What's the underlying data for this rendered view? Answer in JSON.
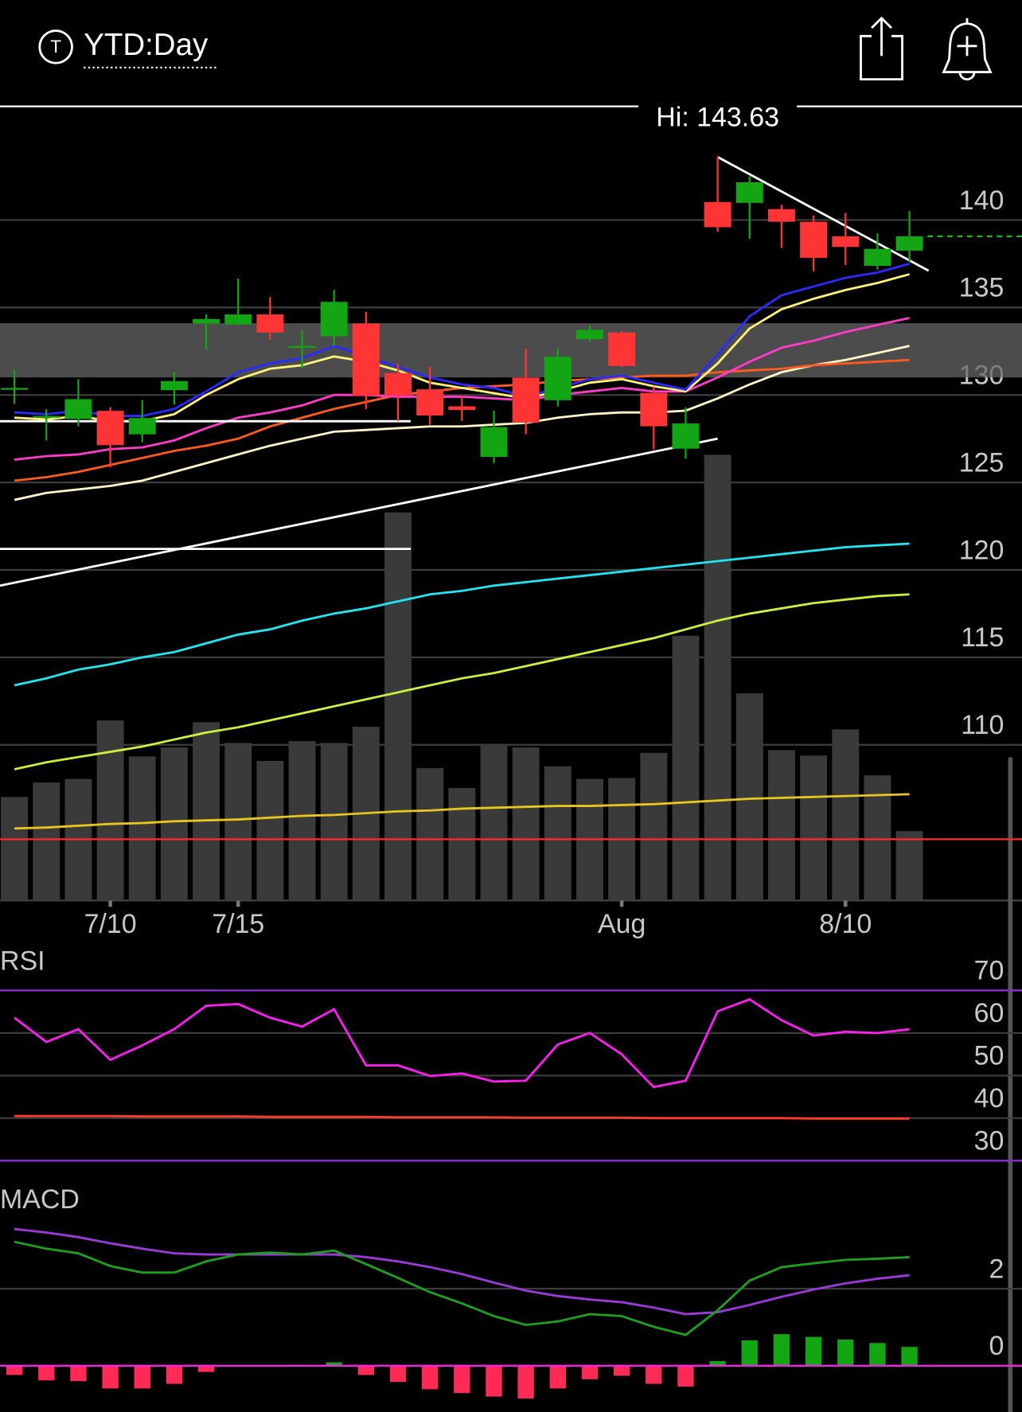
{
  "header": {
    "icon": "T",
    "title": "YTD:Day"
  },
  "chart_data": [
    {
      "type": "candlestick",
      "annotation": "Hi: 143.63",
      "categories": [
        null,
        null,
        null,
        "7/10",
        null,
        null,
        null,
        "7/15",
        null,
        null,
        null,
        null,
        null,
        null,
        null,
        null,
        null,
        null,
        null,
        "Aug",
        null,
        null,
        null,
        null,
        null,
        null,
        "8/10",
        null,
        null
      ],
      "open": [
        130.4,
        128.8,
        128.63,
        129.09,
        127.75,
        130.27,
        134.08,
        134.03,
        134.6,
        132.8,
        133.36,
        134.08,
        131.25,
        130.32,
        129.35,
        126.46,
        130.99,
        129.7,
        133.2,
        133.57,
        130.12,
        126.93,
        141.03,
        140.98,
        140.62,
        139.9,
        139.07,
        137.38,
        138.25
      ],
      "high": [
        131.4,
        129.2,
        130.9,
        129.3,
        129.7,
        131.3,
        134.6,
        136.65,
        135.6,
        133.7,
        136.0,
        134.75,
        131.77,
        131.6,
        129.96,
        129.1,
        132.64,
        132.64,
        133.98,
        133.67,
        130.48,
        129.3,
        143.63,
        142.5,
        140.87,
        140.26,
        140.41,
        139.23,
        140.5
      ],
      "low": [
        129.5,
        127.4,
        128.2,
        125.85,
        127.3,
        129.45,
        132.6,
        133.98,
        133.16,
        131.5,
        132.8,
        129.2,
        128.52,
        128.3,
        128.52,
        126.1,
        127.75,
        129.35,
        133.05,
        131.6,
        126.88,
        126.36,
        139.33,
        138.92,
        138.4,
        137.07,
        137.43,
        137.17,
        137.58
      ],
      "close": [
        130.4,
        128.8,
        129.76,
        127.13,
        128.68,
        130.79,
        134.34,
        134.6,
        133.57,
        132.8,
        135.32,
        129.96,
        129.96,
        128.83,
        129.14,
        128.16,
        128.42,
        132.18,
        133.72,
        131.66,
        128.21,
        128.37,
        139.59,
        142.16,
        139.9,
        137.84,
        138.46,
        138.35,
        139.07
      ],
      "up_color": "#13a513",
      "down_color": "#ff3535",
      "last_line_color": "#13c013",
      "ylim": [
        101.1,
        146.5
      ],
      "yticks": [
        110,
        115,
        120,
        125,
        130,
        135,
        140
      ],
      "y2lim": [
        0,
        882
      ],
      "grid": true,
      "zone": [
        131.0,
        134.1
      ],
      "hlines": [
        {
          "value": 68,
          "axis": "y2",
          "color": "#ff2a2a"
        }
      ],
      "trendlines": [
        {
          "x": [
            22,
            28.6
          ],
          "y": [
            143.6,
            137.1
          ]
        },
        {
          "x": [
            -0.45,
            22
          ],
          "y": [
            119.1,
            127.5
          ]
        },
        {
          "x": [
            -0.45,
            12.4
          ],
          "y": [
            128.5,
            128.5
          ]
        },
        {
          "x": [
            -0.45,
            12.4
          ],
          "y": [
            121.2,
            121.2
          ]
        }
      ],
      "series": [
        {
          "type": "bar",
          "axis": "y2",
          "color": "#3a3a3a",
          "values": [
            115,
            131,
            135,
            200,
            160,
            170,
            198,
            175,
            155,
            177,
            175,
            193,
            431,
            147,
            125,
            174,
            170,
            149,
            135,
            136,
            164,
            294,
            495,
            230,
            167,
            161,
            190,
            139,
            77
          ]
        },
        {
          "axis": "y2",
          "color": "#e8c61e",
          "values": [
            80,
            81,
            83,
            85,
            86,
            88,
            89,
            90,
            92,
            94,
            95,
            97,
            99,
            100,
            102,
            103,
            104,
            105,
            105,
            106,
            107,
            109,
            111,
            113,
            114,
            115,
            116,
            117,
            118
          ]
        },
        {
          "color": "#22e5f0",
          "values": [
            113.4,
            113.8,
            114.3,
            114.6,
            115.0,
            115.3,
            115.8,
            116.3,
            116.6,
            117.1,
            117.5,
            117.8,
            118.2,
            118.6,
            118.8,
            119.1,
            119.3,
            119.5,
            119.7,
            119.9,
            120.1,
            120.3,
            120.5,
            120.7,
            120.9,
            121.1,
            121.3,
            121.4,
            121.5
          ]
        },
        {
          "color": "#c8f03c",
          "values": [
            108.6,
            109.0,
            109.3,
            109.6,
            109.9,
            110.3,
            110.7,
            111.0,
            111.4,
            111.8,
            112.2,
            112.6,
            113.0,
            113.4,
            113.8,
            114.1,
            114.5,
            114.9,
            115.3,
            115.7,
            116.1,
            116.6,
            117.1,
            117.5,
            117.8,
            118.1,
            118.3,
            118.5,
            118.6
          ]
        },
        {
          "color": "#fff5c8",
          "values": [
            124.0,
            124.4,
            124.6,
            124.8,
            125.1,
            125.6,
            126.1,
            126.6,
            127.1,
            127.5,
            127.9,
            128.0,
            128.1,
            128.2,
            128.2,
            128.3,
            128.4,
            128.7,
            128.9,
            129.0,
            129.0,
            129.1,
            129.8,
            130.6,
            131.3,
            131.7,
            132.0,
            132.4,
            132.8
          ]
        },
        {
          "color": "#ff5a1e",
          "values": [
            125.1,
            125.3,
            125.6,
            126.0,
            126.4,
            126.8,
            127.1,
            127.5,
            128.2,
            128.7,
            129.2,
            129.6,
            130.0,
            130.2,
            130.4,
            130.5,
            130.6,
            130.8,
            130.9,
            131.0,
            131.1,
            131.1,
            131.3,
            131.4,
            131.5,
            131.7,
            131.8,
            131.9,
            132.0
          ]
        },
        {
          "color": "#ff3cc8",
          "values": [
            126.3,
            126.5,
            126.6,
            126.9,
            127.0,
            127.4,
            128.1,
            128.7,
            129.0,
            129.4,
            130.0,
            130.0,
            129.9,
            129.9,
            129.9,
            129.8,
            129.7,
            130.0,
            130.2,
            130.4,
            130.2,
            130.2,
            131.0,
            131.9,
            132.7,
            133.1,
            133.6,
            134.0,
            134.4
          ]
        },
        {
          "color": "#fff27a",
          "values": [
            128.7,
            128.6,
            128.8,
            128.5,
            128.5,
            128.9,
            130.0,
            130.9,
            131.5,
            131.7,
            132.2,
            131.9,
            131.4,
            130.7,
            130.4,
            130.1,
            129.8,
            130.2,
            130.7,
            130.9,
            130.5,
            130.2,
            131.8,
            133.8,
            134.9,
            135.5,
            136.0,
            136.4,
            136.9
          ]
        },
        {
          "color": "#2a2aff",
          "values": [
            129.0,
            128.9,
            129.1,
            128.8,
            128.8,
            129.2,
            130.2,
            131.3,
            131.8,
            132.1,
            132.8,
            132.2,
            131.6,
            131.0,
            130.6,
            130.4,
            129.9,
            130.4,
            130.9,
            131.1,
            130.7,
            130.3,
            132.3,
            134.5,
            135.7,
            136.2,
            136.7,
            137.0,
            137.5
          ]
        }
      ]
    },
    {
      "type": "line",
      "title": "RSI",
      "ylim": [
        26.4,
        79.5
      ],
      "yticks": [
        30,
        40,
        50,
        60,
        70
      ],
      "grid": true,
      "hlines": [
        {
          "value": 70,
          "color": "#8a2be2"
        },
        {
          "value": 30,
          "color": "#8a2be2"
        }
      ],
      "series": [
        {
          "color": "#ff3b2a",
          "values": [
            40.5,
            40.5,
            40.5,
            40.5,
            40.4,
            40.4,
            40.4,
            40.4,
            40.3,
            40.3,
            40.3,
            40.3,
            40.2,
            40.2,
            40.2,
            40.2,
            40.1,
            40.1,
            40.1,
            40.1,
            40.0,
            40.0,
            40.0,
            40.0,
            40.0,
            39.9,
            39.9,
            39.9,
            39.9
          ]
        },
        {
          "color": "#ff1ef0",
          "values": [
            63.6,
            57.9,
            60.9,
            53.7,
            57.1,
            60.9,
            66.4,
            66.8,
            63.6,
            61.5,
            65.6,
            52.4,
            52.4,
            49.9,
            50.5,
            48.6,
            48.8,
            57.3,
            60.0,
            55.0,
            47.3,
            48.8,
            65.1,
            67.9,
            63.0,
            59.4,
            60.3,
            60.0,
            60.9
          ]
        }
      ]
    },
    {
      "type": "line",
      "title": "MACD",
      "ylim": [
        -1.2,
        4.6
      ],
      "yticks": [
        0,
        2
      ],
      "grid": true,
      "hlines": [
        {
          "value": 0,
          "color": "#ff1ef0"
        }
      ],
      "series": [
        {
          "type": "histogram",
          "up_color": "#13a513",
          "down_color": "#ff2a55",
          "values": [
            -0.24,
            -0.38,
            -0.4,
            -0.59,
            -0.59,
            -0.47,
            -0.16,
            -0.02,
            -0.02,
            0.02,
            0.09,
            -0.24,
            -0.42,
            -0.61,
            -0.71,
            -0.8,
            -0.85,
            -0.59,
            -0.35,
            -0.26,
            -0.47,
            -0.54,
            0.12,
            0.66,
            0.82,
            0.75,
            0.68,
            0.59,
            0.49
          ]
        },
        {
          "color": "#9a3ad8",
          "values": [
            3.55,
            3.46,
            3.34,
            3.18,
            3.04,
            2.92,
            2.89,
            2.89,
            2.89,
            2.89,
            2.89,
            2.82,
            2.71,
            2.56,
            2.38,
            2.16,
            1.95,
            1.81,
            1.72,
            1.65,
            1.51,
            1.34,
            1.39,
            1.58,
            1.79,
            1.98,
            2.14,
            2.26,
            2.35
          ]
        },
        {
          "color": "#1ea01e",
          "values": [
            3.22,
            3.04,
            2.92,
            2.59,
            2.42,
            2.42,
            2.71,
            2.89,
            2.94,
            2.89,
            2.99,
            2.64,
            2.28,
            1.91,
            1.62,
            1.29,
            1.06,
            1.15,
            1.34,
            1.29,
            1.01,
            0.8,
            1.44,
            2.21,
            2.56,
            2.66,
            2.75,
            2.78,
            2.82
          ]
        }
      ]
    }
  ]
}
